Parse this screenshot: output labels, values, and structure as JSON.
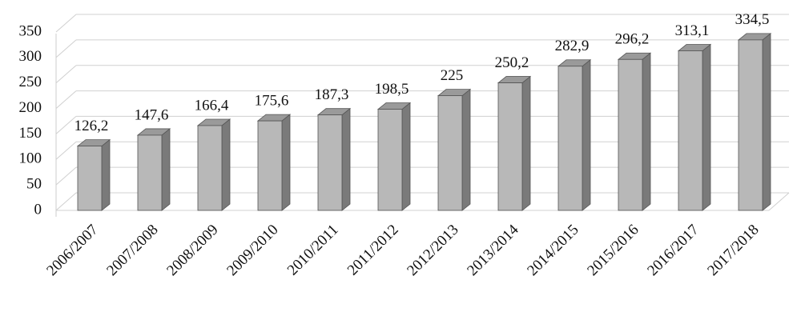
{
  "chart_data": {
    "type": "bar3d",
    "categories": [
      "2006/2007",
      "2007/2008",
      "2008/2009",
      "2009/2010",
      "2010/2011",
      "2011/2012",
      "2012/2013",
      "2013/2014",
      "2014/2015",
      "2015/2016",
      "2016/2017",
      "2017/2018"
    ],
    "values": [
      126.2,
      147.6,
      166.4,
      175.6,
      187.3,
      198.5,
      225,
      250.2,
      282.9,
      296.2,
      313.1,
      334.5
    ],
    "value_labels": [
      "126,2",
      "147,6",
      "166,4",
      "175,6",
      "187,3",
      "198,5",
      "225",
      "250,2",
      "282,9",
      "296,2",
      "313,1",
      "334,5"
    ],
    "color": "#b8b8b8",
    "ylim": [
      0,
      350
    ],
    "yticks": [
      0,
      50,
      100,
      150,
      200,
      250,
      300,
      350
    ],
    "grid": true
  }
}
